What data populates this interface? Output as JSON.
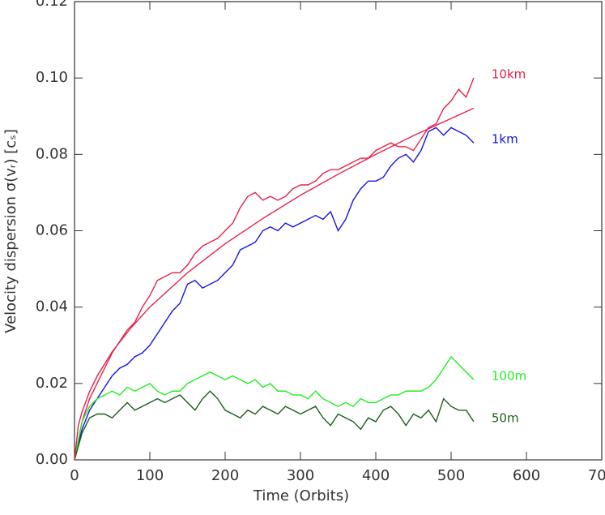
{
  "chart_data": {
    "type": "line",
    "xlabel": "Time (Orbits)",
    "ylabel": "Velocity dispersion σ(vᵣ) [cₛ]",
    "xlim": [
      0,
      700
    ],
    "xticks": [
      0,
      100,
      200,
      300,
      400,
      500,
      600,
      700
    ],
    "ylim": [
      0,
      0.12
    ],
    "yticks": [
      {
        "value": 0,
        "label": "0.00"
      },
      {
        "value": 0.02,
        "label": "0.02"
      },
      {
        "value": 0.04,
        "label": "0.04"
      },
      {
        "value": 0.06,
        "label": "0.06"
      },
      {
        "value": 0.08,
        "label": "0.08"
      },
      {
        "value": 0.1,
        "label": "0.10"
      },
      {
        "value": 0.12,
        "label": "0.12"
      }
    ],
    "x": [
      0,
      10,
      20,
      30,
      40,
      50,
      60,
      70,
      80,
      90,
      100,
      110,
      120,
      130,
      140,
      150,
      160,
      170,
      180,
      190,
      200,
      210,
      220,
      230,
      240,
      250,
      260,
      270,
      280,
      290,
      300,
      310,
      320,
      330,
      340,
      350,
      360,
      370,
      380,
      390,
      400,
      410,
      420,
      430,
      440,
      450,
      460,
      470,
      480,
      490,
      500,
      510,
      520,
      530
    ],
    "series": [
      {
        "name": "10km",
        "color": "#e8204a",
        "values": [
          0,
          0.01,
          0.016,
          0.02,
          0.024,
          0.028,
          0.031,
          0.034,
          0.036,
          0.04,
          0.043,
          0.047,
          0.048,
          0.049,
          0.049,
          0.051,
          0.054,
          0.056,
          0.057,
          0.058,
          0.06,
          0.062,
          0.066,
          0.069,
          0.07,
          0.068,
          0.069,
          0.068,
          0.069,
          0.071,
          0.072,
          0.072,
          0.073,
          0.075,
          0.076,
          0.076,
          0.077,
          0.078,
          0.079,
          0.079,
          0.081,
          0.082,
          0.083,
          0.082,
          0.082,
          0.081,
          0.084,
          0.087,
          0.088,
          0.092,
          0.094,
          0.097,
          0.095,
          0.1
        ]
      },
      {
        "name": "1km",
        "color": "#1414e6",
        "values": [
          0,
          0.008,
          0.013,
          0.016,
          0.019,
          0.022,
          0.024,
          0.025,
          0.027,
          0.028,
          0.03,
          0.033,
          0.036,
          0.039,
          0.041,
          0.046,
          0.047,
          0.045,
          0.046,
          0.047,
          0.049,
          0.051,
          0.055,
          0.056,
          0.057,
          0.06,
          0.061,
          0.06,
          0.062,
          0.061,
          0.062,
          0.063,
          0.064,
          0.063,
          0.065,
          0.06,
          0.063,
          0.068,
          0.071,
          0.073,
          0.073,
          0.074,
          0.077,
          0.079,
          0.08,
          0.078,
          0.081,
          0.086,
          0.087,
          0.085,
          0.087,
          0.086,
          0.085,
          0.083
        ]
      },
      {
        "name": "100m",
        "color": "#22ee22",
        "values": [
          0,
          0.01,
          0.014,
          0.016,
          0.017,
          0.018,
          0.017,
          0.019,
          0.018,
          0.019,
          0.02,
          0.018,
          0.017,
          0.018,
          0.018,
          0.02,
          0.021,
          0.022,
          0.023,
          0.022,
          0.021,
          0.022,
          0.021,
          0.02,
          0.021,
          0.019,
          0.02,
          0.018,
          0.018,
          0.017,
          0.017,
          0.016,
          0.018,
          0.016,
          0.015,
          0.014,
          0.015,
          0.014,
          0.016,
          0.015,
          0.015,
          0.016,
          0.017,
          0.017,
          0.018,
          0.018,
          0.018,
          0.019,
          0.021,
          0.024,
          0.027,
          0.025,
          0.023,
          0.021
        ]
      },
      {
        "name": "50m",
        "color": "#1a5e1a",
        "values": [
          0,
          0.007,
          0.011,
          0.012,
          0.012,
          0.011,
          0.013,
          0.015,
          0.013,
          0.014,
          0.015,
          0.016,
          0.015,
          0.016,
          0.017,
          0.015,
          0.013,
          0.016,
          0.018,
          0.016,
          0.013,
          0.012,
          0.011,
          0.013,
          0.012,
          0.014,
          0.013,
          0.012,
          0.014,
          0.013,
          0.012,
          0.013,
          0.014,
          0.011,
          0.009,
          0.012,
          0.011,
          0.01,
          0.008,
          0.011,
          0.01,
          0.013,
          0.014,
          0.012,
          0.009,
          0.012,
          0.011,
          0.013,
          0.01,
          0.016,
          0.014,
          0.013,
          0.013,
          0.01
        ]
      },
      {
        "color": "#e8204a",
        "x": [
          0,
          5,
          10,
          20,
          30,
          50,
          75,
          100,
          150,
          200,
          250,
          300,
          350,
          400,
          450,
          500,
          530
        ],
        "values": [
          0,
          0.0089,
          0.0126,
          0.0179,
          0.0219,
          0.0283,
          0.0346,
          0.04,
          0.049,
          0.0566,
          0.0632,
          0.0693,
          0.0748,
          0.08,
          0.0849,
          0.0894,
          0.0921
        ]
      }
    ]
  }
}
